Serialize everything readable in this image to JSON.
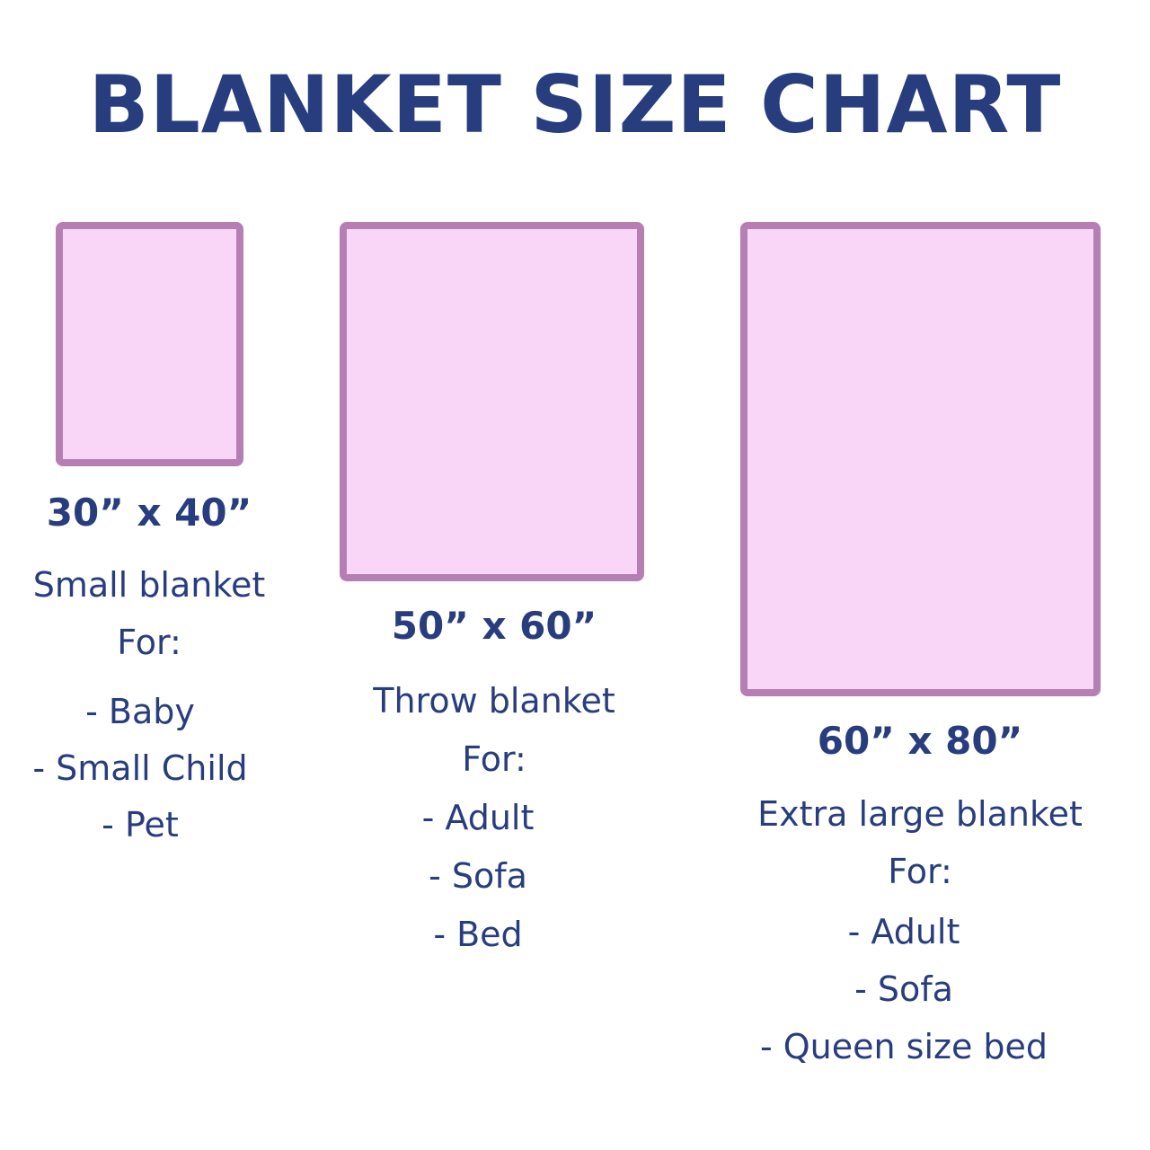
{
  "title": "BLANKET SIZE CHART",
  "colors": {
    "text": "#283d7e",
    "blanket_fill": "#f9d5f7",
    "blanket_border": "#b67fb4"
  },
  "blankets": [
    {
      "size": "30” x 40”",
      "name": "Small blanket",
      "for_label": "For:",
      "uses": [
        "- Baby",
        "- Small Child",
        "- Pet"
      ]
    },
    {
      "size": "50” x 60”",
      "name": "Throw blanket",
      "for_label": "For:",
      "uses": [
        "- Adult",
        "- Sofa",
        "- Bed"
      ]
    },
    {
      "size": "60” x 80”",
      "name": "Extra large blanket",
      "for_label": "For:",
      "uses": [
        "- Adult",
        "- Sofa",
        "- Queen size bed"
      ]
    }
  ]
}
